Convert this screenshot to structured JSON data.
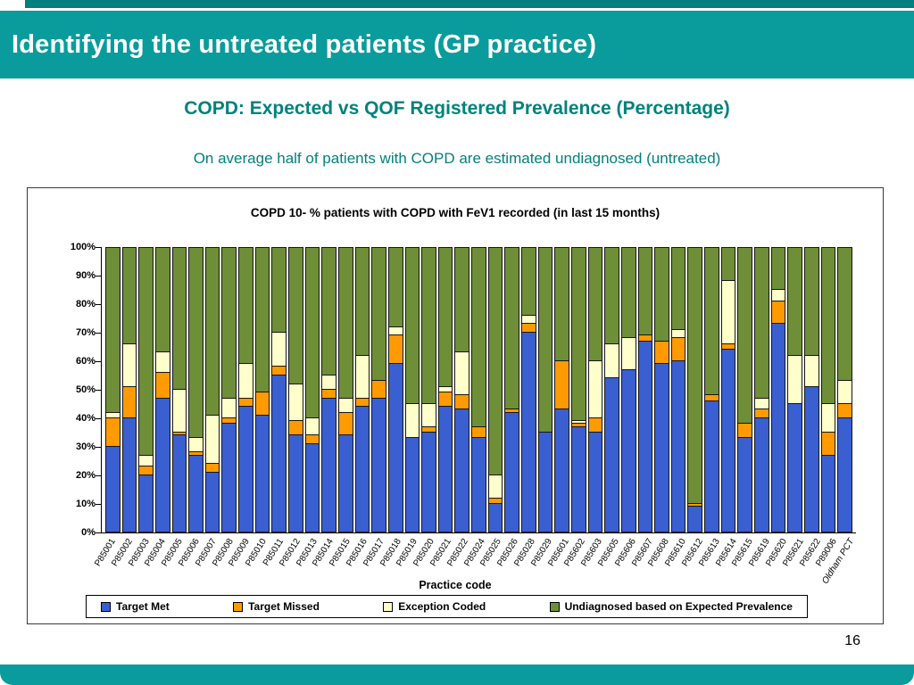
{
  "slide": {
    "header_title": "Identifying the untreated patients (GP practice)",
    "title": "COPD: Expected vs QOF Registered Prevalence (Percentage)",
    "subtitle": "On average half of patients with COPD are estimated undiagnosed (untreated)",
    "page_number": "16",
    "colors": {
      "header_teal": "#0a9c9c",
      "accent_dark_teal": "#027f7f",
      "title_text_teal": "#00827c"
    }
  },
  "chart_data": {
    "type": "bar",
    "stacked": true,
    "percent_stacked": true,
    "title": "COPD 10- % patients with COPD with FeV1 recorded (in last 15 months)",
    "xlabel": "Practice code",
    "ylabel": "",
    "ylim": [
      0,
      100
    ],
    "grid": false,
    "legend_position": "bottom",
    "y_ticks": [
      "100%",
      "90%",
      "80%",
      "70%",
      "60%",
      "50%",
      "40%",
      "30%",
      "20%",
      "10%",
      "0%"
    ],
    "categories": [
      "P85001",
      "P85002",
      "P85003",
      "P85004",
      "P85005",
      "P85006",
      "P85007",
      "P85008",
      "P85009",
      "P85010",
      "P85011",
      "P85012",
      "P85013",
      "P85014",
      "P85015",
      "P85016",
      "P85017",
      "P85018",
      "P85019",
      "P85020",
      "P85021",
      "P85022",
      "P85024",
      "P85025",
      "P85026",
      "P85028",
      "P85029",
      "P85601",
      "P85602",
      "P85603",
      "P85605",
      "P85606",
      "P85607",
      "P85608",
      "P85610",
      "P85612",
      "P85613",
      "P85614",
      "P85615",
      "P85619",
      "P85620",
      "P85621",
      "P85622",
      "P89006",
      "Oldham PCT"
    ],
    "series": [
      {
        "name": "Target Met",
        "color": "#3a5fd1",
        "values": [
          30,
          40,
          20,
          47,
          34,
          27,
          21,
          38,
          44,
          41,
          55,
          34,
          31,
          47,
          34,
          44,
          47,
          59,
          33,
          35,
          44,
          43,
          33,
          10,
          42,
          70,
          35,
          43,
          37,
          35,
          54,
          57,
          67,
          59,
          60,
          9,
          46,
          64,
          33,
          40,
          73,
          45,
          51,
          27,
          40
        ]
      },
      {
        "name": "Target Missed",
        "color": "#ff9a00",
        "values": [
          10,
          11,
          3,
          9,
          1,
          1,
          3,
          2,
          3,
          8,
          3,
          5,
          3,
          3,
          8,
          3,
          6,
          10,
          0,
          2,
          5,
          5,
          4,
          2,
          1,
          3,
          0,
          17,
          1,
          5,
          0,
          0,
          2,
          8,
          8,
          1,
          2,
          2,
          5,
          3,
          8,
          0,
          0,
          8,
          5
        ]
      },
      {
        "name": "Exception Coded",
        "color": "#ffffcc",
        "values": [
          2,
          15,
          4,
          7,
          15,
          5,
          17,
          7,
          12,
          0,
          12,
          13,
          6,
          5,
          5,
          15,
          0,
          3,
          12,
          8,
          2,
          15,
          0,
          8,
          0,
          3,
          0,
          0,
          1,
          20,
          12,
          11,
          0,
          0,
          3,
          0,
          0,
          22,
          0,
          4,
          4,
          17,
          11,
          10,
          8
        ]
      },
      {
        "name": "Undiagnosed based on Expected Prevalence",
        "color": "#6f8e38",
        "values": [
          58,
          34,
          73,
          37,
          50,
          67,
          59,
          53,
          41,
          51,
          30,
          48,
          60,
          45,
          53,
          38,
          47,
          28,
          55,
          55,
          49,
          37,
          63,
          80,
          57,
          24,
          65,
          40,
          61,
          40,
          34,
          32,
          31,
          33,
          29,
          90,
          52,
          12,
          62,
          53,
          15,
          38,
          38,
          55,
          47
        ]
      }
    ]
  }
}
